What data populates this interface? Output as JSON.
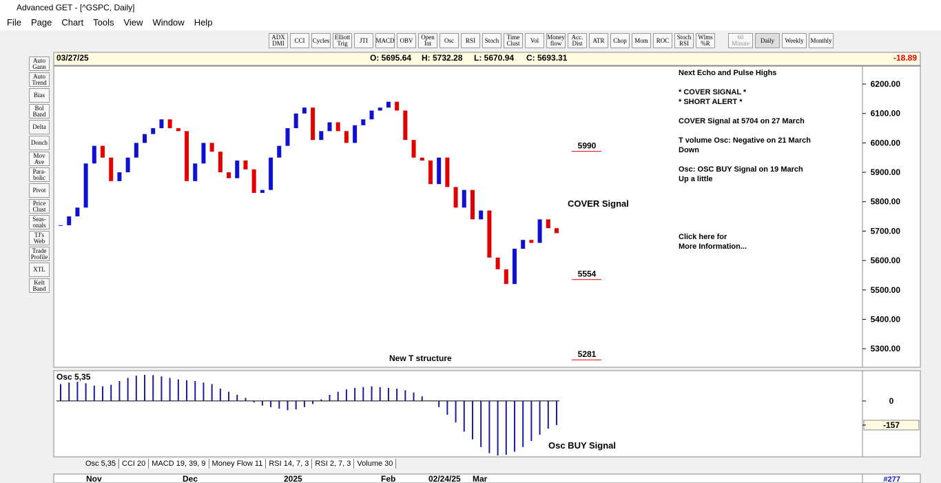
{
  "window": {
    "title": "Advanced GET - [^GSPC, Daily]"
  },
  "menu": [
    "File",
    "Page",
    "Chart",
    "Tools",
    "View",
    "Window",
    "Help"
  ],
  "toolbar": [
    "ADX DMI",
    "CCI",
    "Cycles",
    "Elliott Trig",
    "JTI",
    "MACD",
    "OBV",
    "Open Int",
    "Osc",
    "RSI",
    "Stoch",
    "Time Clust",
    "Vol",
    "Money flow",
    "Acc. Dist",
    "ATR",
    "Chop",
    "Mom",
    "ROC",
    "Stoch RSI",
    "Wlms %R"
  ],
  "timeframes": [
    "60 Minute",
    "Daily",
    "Weekly",
    "Monthly"
  ],
  "side_tools": [
    "Auto Gann",
    "Auto Trend",
    "Bias",
    "Bol Band",
    "Delta",
    "Donch",
    "Mov Ave",
    "Para-bolic",
    "Pivot",
    "Price Clust",
    "Seas-onals",
    "TJ's Web",
    "Trade Profile",
    "XTL",
    "Kelt Band"
  ],
  "info_bar": {
    "date": "03/27/25",
    "open": "O: 5695.64",
    "high": "H: 5732.28",
    "low": "L: 5670.94",
    "close": "C: 5693.31",
    "change": "-18.89"
  },
  "chart_data": [
    {
      "type": "candlestick",
      "up_color": "#1010d0",
      "down_color": "#e00000",
      "values": [
        5720,
        5750,
        5780,
        5930,
        5990,
        5950,
        5870,
        5900,
        5950,
        6000,
        6030,
        6050,
        6080,
        6050,
        6040,
        5870,
        5930,
        6000,
        5970,
        5900,
        5880,
        5940,
        5910,
        5830,
        5840,
        5950,
        5990,
        6050,
        6100,
        6120,
        6010,
        6040,
        6070,
        6040,
        6000,
        6060,
        6080,
        6110,
        6120,
        6140,
        6110,
        6010,
        5950,
        5940,
        5860,
        5950,
        5850,
        5780,
        5840,
        5740,
        5770,
        5610,
        5570,
        5520,
        5640,
        5670,
        5660,
        5740,
        5710,
        5693
      ],
      "ylim": [
        5237,
        6261
      ],
      "yticks": [
        {
          "value": 5300,
          "label": "5300.00"
        },
        {
          "value": 5400,
          "label": "5400.00"
        },
        {
          "value": 5500,
          "label": "5500.00"
        },
        {
          "value": 5600,
          "label": "5600.00"
        },
        {
          "value": 5700,
          "label": "5700.00"
        },
        {
          "value": 5800,
          "label": "5800.00"
        },
        {
          "value": 5900,
          "label": "5900.00"
        },
        {
          "value": 6000,
          "label": "6000.00"
        },
        {
          "value": 6100,
          "label": "6100.00"
        },
        {
          "value": 6200,
          "label": "6200.00"
        }
      ],
      "levels": [
        5990,
        5554,
        5281
      ],
      "annotations": [
        "COVER Signal",
        "New T structure"
      ]
    },
    {
      "type": "bar",
      "title": "Osc 5,35",
      "color": "#1a1aa0",
      "values": [
        110,
        120,
        125,
        115,
        100,
        95,
        105,
        130,
        150,
        165,
        170,
        168,
        160,
        150,
        140,
        135,
        130,
        120,
        110,
        80,
        60,
        40,
        20,
        -10,
        -30,
        -40,
        -50,
        -60,
        -55,
        -40,
        -20,
        10,
        40,
        60,
        75,
        85,
        90,
        95,
        90,
        85,
        80,
        70,
        55,
        30,
        0,
        -40,
        -90,
        -140,
        -200,
        -250,
        -300,
        -340,
        -355,
        -350,
        -330,
        -300,
        -260,
        -220,
        -180,
        -157
      ],
      "ylim": [
        -359,
        197
      ],
      "yticks": [
        0,
        -157
      ],
      "annotations": [
        "Osc BUY Signal"
      ]
    }
  ],
  "notes": [
    "Next Echo and Pulse Highs",
    "* COVER SIGNAL *",
    "* SHORT ALERT *",
    "COVER Signal at 5704 on 27 March",
    "T volume Osc: Negative on 21 March",
    "Down",
    "Osc: OSC BUY Signal on 19 March",
    "Up a little",
    "Click here for",
    "More Information..."
  ],
  "tabs": [
    "Osc 5,35",
    "CCI 20",
    "MACD 19, 39, 9",
    "Money Flow 11",
    "RSI 14, 7, 3",
    "RSI 2, 7, 3",
    "Volume 30"
  ],
  "date_axis": {
    "labels": [
      "Nov",
      "Dec",
      "2025",
      "Feb",
      "02/24/25",
      "Mar"
    ],
    "bar_number": "#277"
  }
}
